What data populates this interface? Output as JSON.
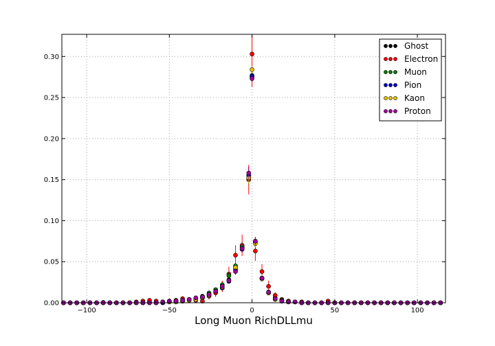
{
  "chart_data": {
    "type": "scatter",
    "title": "",
    "xlabel": "Long Muon RichDLLmu",
    "ylabel": "",
    "xlim": [
      -115,
      117
    ],
    "ylim": [
      0,
      0.327
    ],
    "x_ticks": [
      "−100",
      "−50",
      "0",
      "50",
      "100"
    ],
    "x_tick_values": [
      -100,
      -50,
      0,
      50,
      100
    ],
    "y_ticks": [
      "0.00",
      "0.05",
      "0.10",
      "0.15",
      "0.20",
      "0.25",
      "0.30"
    ],
    "y_tick_values": [
      0,
      0.05,
      0.1,
      0.15,
      0.2,
      0.25,
      0.3
    ],
    "grid": true,
    "legend_position": "top-right",
    "x": [
      -114,
      -110,
      -106,
      -102,
      -98,
      -94,
      -90,
      -86,
      -82,
      -78,
      -74,
      -70,
      -66,
      -62,
      -58,
      -54,
      -50,
      -46,
      -42,
      -38,
      -34,
      -30,
      -26,
      -22,
      -18,
      -14,
      -10,
      -6,
      -2,
      2,
      6,
      10,
      14,
      18,
      22,
      26,
      30,
      34,
      38,
      42,
      46,
      50,
      54,
      58,
      62,
      66,
      70,
      74,
      78,
      82,
      86,
      90,
      94,
      98,
      102,
      106,
      110,
      114
    ],
    "series": [
      {
        "name": "Ghost",
        "color": "#000000",
        "values": [
          0,
          0,
          0,
          0,
          0,
          0,
          0.0005,
          0,
          0,
          0,
          0,
          0,
          0,
          0.001,
          0,
          0.001,
          0.001,
          0.002,
          0.003,
          0.004,
          0.005,
          0.007,
          0.01,
          0.014,
          0.018,
          0.028,
          0.042,
          0.068,
          0.155,
          0.074,
          0.03,
          0.013,
          0.006,
          0.003,
          0.002,
          0.001,
          0.001,
          0,
          0,
          0,
          0.001,
          0,
          0,
          0,
          0,
          0,
          0,
          0,
          0,
          0,
          0,
          0,
          0,
          0,
          0,
          0,
          0,
          0
        ],
        "errors": [
          0,
          0,
          0,
          0,
          0,
          0,
          0,
          0,
          0,
          0,
          0,
          0,
          0,
          0,
          0,
          0,
          0,
          0,
          0,
          0,
          0.001,
          0.001,
          0.002,
          0.002,
          0.003,
          0.004,
          0.005,
          0.006,
          0.01,
          0.006,
          0.004,
          0.003,
          0.002,
          0.001,
          0.001,
          0,
          0,
          0,
          0,
          0,
          0,
          0,
          0,
          0,
          0,
          0,
          0,
          0,
          0,
          0,
          0,
          0,
          0,
          0,
          0,
          0,
          0,
          0
        ]
      },
      {
        "name": "Electron",
        "color": "#ff0000",
        "values": [
          0,
          0,
          0,
          0,
          0,
          0,
          0,
          0,
          0,
          0,
          0,
          0.001,
          0.002,
          0.003,
          0.002,
          0.001,
          0.002,
          0.003,
          0.005,
          0.004,
          0.003,
          0.002,
          0.008,
          0.012,
          0.02,
          0.035,
          0.058,
          0.07,
          0.15,
          0.063,
          0.038,
          0.02,
          0.009,
          0.004,
          0.002,
          0.001,
          0.001,
          0,
          0,
          0,
          0.002,
          0,
          0,
          0,
          0,
          0,
          0,
          0,
          0,
          0,
          0,
          0,
          0,
          0,
          0,
          0,
          0,
          0
        ],
        "errors": [
          0,
          0,
          0,
          0,
          0,
          0,
          0,
          0,
          0,
          0,
          0,
          0.001,
          0.001,
          0.002,
          0.001,
          0.001,
          0.001,
          0.002,
          0.003,
          0.002,
          0.002,
          0.002,
          0.004,
          0.005,
          0.007,
          0.009,
          0.012,
          0.013,
          0.018,
          0.012,
          0.009,
          0.007,
          0.004,
          0.002,
          0.001,
          0.001,
          0.001,
          0,
          0,
          0,
          0.001,
          0,
          0,
          0,
          0,
          0,
          0,
          0,
          0,
          0,
          0,
          0,
          0,
          0,
          0,
          0,
          0,
          0
        ]
      },
      {
        "name": "Muon",
        "color": "#007a00",
        "values": [
          0,
          0,
          0,
          0,
          0,
          0,
          0,
          0,
          0,
          0,
          0,
          0,
          0,
          0,
          0,
          0,
          0.001,
          0.002,
          0.003,
          0.004,
          0.005,
          0.008,
          0.012,
          0.016,
          0.022,
          0.033,
          0.045,
          0.068,
          0.152,
          0.075,
          0.03,
          0.012,
          0.005,
          0.003,
          0.001,
          0.001,
          0,
          0,
          0,
          0,
          0,
          0,
          0,
          0,
          0,
          0,
          0,
          0,
          0,
          0,
          0,
          0,
          0,
          0,
          0,
          0,
          0,
          0
        ],
        "errors": [
          0,
          0,
          0,
          0,
          0,
          0,
          0,
          0,
          0,
          0,
          0,
          0,
          0,
          0,
          0,
          0,
          0,
          0,
          0,
          0,
          0.001,
          0.001,
          0.002,
          0.002,
          0.003,
          0.004,
          0.004,
          0.005,
          0.008,
          0.005,
          0.003,
          0.002,
          0.001,
          0.001,
          0,
          0,
          0,
          0,
          0,
          0,
          0,
          0,
          0,
          0,
          0,
          0,
          0,
          0,
          0,
          0,
          0,
          0,
          0,
          0,
          0,
          0,
          0,
          0
        ]
      },
      {
        "name": "Pion",
        "color": "#0000cc",
        "values": [
          0,
          0,
          0,
          0,
          0,
          0,
          0,
          0,
          0,
          0,
          0,
          0,
          0,
          0,
          0,
          0,
          0.001,
          0.001,
          0.002,
          0.003,
          0.004,
          0.006,
          0.01,
          0.014,
          0.018,
          0.026,
          0.04,
          0.065,
          0.155,
          0.074,
          0.03,
          0.013,
          0.005,
          0.002,
          0.001,
          0.001,
          0,
          0,
          0,
          0,
          0,
          0,
          0,
          0,
          0,
          0,
          0,
          0,
          0,
          0,
          0,
          0,
          0,
          0,
          0,
          0,
          0,
          0
        ],
        "errors": [
          0,
          0,
          0,
          0,
          0,
          0,
          0,
          0,
          0,
          0,
          0,
          0,
          0,
          0,
          0,
          0,
          0,
          0,
          0,
          0,
          0,
          0.001,
          0.001,
          0.001,
          0.002,
          0.002,
          0.003,
          0.003,
          0.005,
          0.003,
          0.002,
          0.001,
          0.001,
          0,
          0,
          0,
          0,
          0,
          0,
          0,
          0,
          0,
          0,
          0,
          0,
          0,
          0,
          0,
          0,
          0,
          0,
          0,
          0,
          0,
          0,
          0,
          0,
          0
        ]
      },
      {
        "name": "Kaon",
        "color": "#e6c200",
        "values": [
          0,
          0,
          0,
          0,
          0,
          0,
          0,
          0,
          0,
          0,
          0,
          0,
          0,
          0,
          0,
          0.001,
          0.001,
          0.001,
          0.002,
          0.003,
          0.004,
          0.006,
          0.009,
          0.014,
          0.019,
          0.027,
          0.043,
          0.066,
          0.152,
          0.072,
          0.029,
          0.012,
          0.004,
          0.002,
          0.001,
          0.001,
          0,
          0,
          0,
          0,
          0,
          0,
          0,
          0,
          0,
          0,
          0,
          0,
          0,
          0,
          0,
          0,
          0,
          0,
          0,
          0,
          0,
          0
        ],
        "errors": [
          0,
          0,
          0,
          0,
          0,
          0,
          0,
          0,
          0,
          0,
          0,
          0,
          0,
          0,
          0,
          0,
          0,
          0,
          0,
          0,
          0,
          0.001,
          0.001,
          0.002,
          0.002,
          0.003,
          0.004,
          0.004,
          0.007,
          0.004,
          0.003,
          0.002,
          0.001,
          0,
          0,
          0,
          0,
          0,
          0,
          0,
          0,
          0,
          0,
          0,
          0,
          0,
          0,
          0,
          0,
          0,
          0,
          0,
          0,
          0,
          0,
          0,
          0,
          0
        ]
      },
      {
        "name": "Proton",
        "color": "#a000a0",
        "values": [
          0,
          0,
          0,
          0,
          0,
          0,
          0,
          0,
          0,
          0,
          0,
          0,
          0,
          0,
          0,
          0.001,
          0.002,
          0.002,
          0.003,
          0.004,
          0.006,
          0.007,
          0.01,
          0.014,
          0.02,
          0.027,
          0.038,
          0.066,
          0.158,
          0.075,
          0.03,
          0.013,
          0.005,
          0.002,
          0.001,
          0.001,
          0,
          0,
          0,
          0,
          0,
          0,
          0,
          0,
          0,
          0,
          0,
          0,
          0,
          0,
          0,
          0,
          0,
          0,
          0,
          0,
          0,
          0
        ],
        "errors": [
          0,
          0,
          0,
          0,
          0,
          0,
          0,
          0,
          0,
          0,
          0,
          0,
          0,
          0,
          0,
          0,
          0,
          0,
          0,
          0.001,
          0.001,
          0.001,
          0.002,
          0.002,
          0.003,
          0.003,
          0.004,
          0.005,
          0.008,
          0.005,
          0.003,
          0.002,
          0.001,
          0,
          0,
          0,
          0,
          0,
          0,
          0,
          0,
          0,
          0,
          0,
          0,
          0,
          0,
          0,
          0,
          0,
          0,
          0,
          0,
          0,
          0,
          0,
          0,
          0
        ]
      }
    ],
    "center_bin": {
      "x": 0,
      "values": [
        0.275,
        0.303,
        0.277,
        0.276,
        0.284,
        0.273
      ],
      "errors": [
        0.004,
        0.04,
        0.004,
        0.003,
        0.004,
        0.004
      ]
    }
  }
}
